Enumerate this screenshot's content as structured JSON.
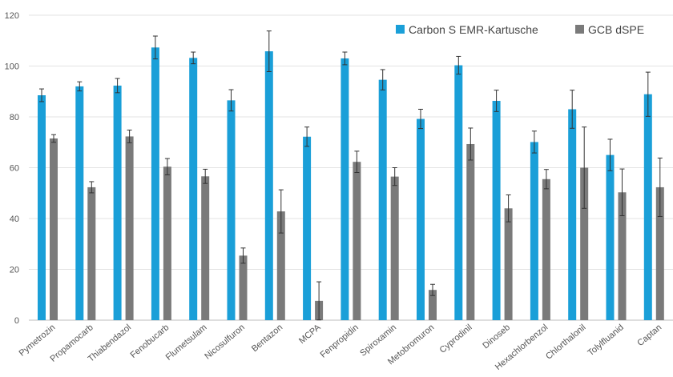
{
  "chart_data": {
    "type": "bar",
    "categories": [
      "Pymetrozin",
      "Propamocarb",
      "Thiabendazol",
      "Fenobucarb",
      "Flumetsulam",
      "Nicosulfuron",
      "Bentazon",
      "MCPA",
      "Fenpropidin",
      "Spiroxamin",
      "Metobromuron",
      "Cyprodinil",
      "Dinoseb",
      "Hexachlorbenzol",
      "Chlorthalonil",
      "Tolylfluanid",
      "Captan"
    ],
    "series": [
      {
        "name": "Carbon S EMR-Kartusche",
        "color": "#1a9fd8",
        "values": [
          88.5,
          92,
          92.3,
          107.3,
          103.2,
          86.5,
          105.8,
          72.2,
          103,
          94.6,
          79.2,
          100.3,
          86.3,
          70.1,
          83,
          65,
          88.9
        ],
        "errors": [
          2.5,
          1.8,
          2.8,
          4.5,
          2.3,
          4.2,
          8.0,
          3.8,
          2.5,
          4.0,
          3.8,
          3.5,
          4.2,
          4.3,
          7.5,
          6.2,
          8.7
        ]
      },
      {
        "name": "GCB dSPE",
        "color": "#7a7a7a",
        "values": [
          71.5,
          52.3,
          72.3,
          60.4,
          56.6,
          25.4,
          42.8,
          7.6,
          62.3,
          56.5,
          11.9,
          69.3,
          44,
          55.5,
          60,
          50.3,
          52.3
        ],
        "errors": [
          1.5,
          2.2,
          2.5,
          3.2,
          2.8,
          3.0,
          8.5,
          7.5,
          4.2,
          3.5,
          2.2,
          6.3,
          5.3,
          3.8,
          16.0,
          9.2,
          11.5
        ]
      }
    ],
    "y_ticks": [
      "0",
      "20",
      "40",
      "60",
      "80",
      "100",
      "120"
    ],
    "ylim": [
      0,
      120
    ],
    "grid": true,
    "legend_position": "top-right"
  }
}
